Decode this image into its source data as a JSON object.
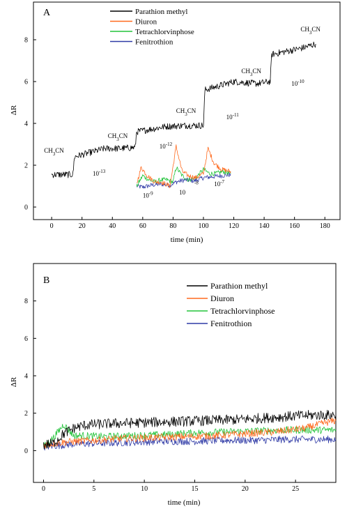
{
  "chart_data": [
    {
      "panel": "A",
      "type": "line",
      "xlabel": "time (min)",
      "ylabel": "ΔR",
      "xlim": [
        -12,
        190
      ],
      "ylim": [
        -0.6,
        9.8
      ],
      "xticks": [
        0,
        20,
        40,
        60,
        80,
        100,
        120,
        140,
        160,
        180
      ],
      "yticks": [
        0,
        2,
        4,
        6,
        8
      ],
      "legend_position": "top-center",
      "series": [
        {
          "name": "Parathion methyl",
          "color": "#000000",
          "x": [
            0,
            14,
            15,
            35,
            45,
            55,
            56,
            75,
            88,
            100,
            101,
            120,
            135,
            144,
            145,
            165,
            174
          ],
          "y": [
            1.55,
            1.55,
            2.4,
            2.8,
            2.8,
            2.85,
            3.6,
            3.85,
            3.9,
            3.9,
            5.6,
            6.0,
            5.9,
            6.0,
            7.3,
            7.6,
            7.8
          ]
        },
        {
          "name": "Diuron",
          "color": "#ff6a1e",
          "x": [
            56,
            59,
            63,
            68,
            72,
            75,
            78,
            82,
            86,
            90,
            95,
            100,
            103,
            107,
            112,
            118
          ],
          "y": [
            1.1,
            1.9,
            1.5,
            1.2,
            1.2,
            1.1,
            1.0,
            2.9,
            1.7,
            1.5,
            1.4,
            1.6,
            2.8,
            2.1,
            1.8,
            1.7
          ]
        },
        {
          "name": "Tetrachlorvinphose",
          "color": "#22c33a",
          "x": [
            56,
            60,
            64,
            68,
            72,
            76,
            80,
            82,
            86,
            90,
            95,
            100,
            104,
            108,
            113,
            118
          ],
          "y": [
            1.0,
            1.5,
            1.3,
            1.2,
            1.3,
            1.3,
            1.2,
            1.9,
            1.5,
            1.3,
            1.4,
            1.8,
            1.6,
            1.6,
            1.7,
            1.6
          ]
        },
        {
          "name": "Fenitrothion",
          "color": "#2f3aa6",
          "x": [
            56,
            60,
            66,
            72,
            78,
            82,
            88,
            94,
            100,
            106,
            112,
            118
          ],
          "y": [
            1.0,
            0.95,
            1.05,
            1.1,
            1.05,
            1.2,
            1.3,
            1.25,
            1.4,
            1.45,
            1.5,
            1.55
          ]
        }
      ],
      "annotations": [
        {
          "text": "CH3CN",
          "x": -5,
          "y": 2.6
        },
        {
          "text": "CH3CN",
          "x": 37,
          "y": 3.3
        },
        {
          "text": "CH3CN",
          "x": 82,
          "y": 4.5
        },
        {
          "text": "CH3CN",
          "x": 125,
          "y": 6.4
        },
        {
          "text": "CH3CN",
          "x": 164,
          "y": 8.4
        },
        {
          "text": "10",
          "sup": "-13",
          "x": 27,
          "y": 1.5
        },
        {
          "text": "10",
          "sup": "-12",
          "x": 71,
          "y": 2.8
        },
        {
          "text": "10",
          "sup": "-11",
          "x": 115,
          "y": 4.2
        },
        {
          "text": "10",
          "sup": "-10",
          "x": 158,
          "y": 5.8
        },
        {
          "text": "10",
          "sup": "-9",
          "x": 60,
          "y": 0.45
        },
        {
          "text": "10",
          "sup": "",
          "x": 84,
          "y": 0.6
        },
        {
          "text": "",
          "sup": "-8",
          "x": 94,
          "y": 0.95
        },
        {
          "text": "10",
          "sup": "-7",
          "x": 107,
          "y": 1.0
        }
      ]
    },
    {
      "panel": "B",
      "type": "line",
      "xlabel": "time (min)",
      "ylabel": "ΔR",
      "xlim": [
        -1,
        29
      ],
      "ylim": [
        -1.7,
        10
      ],
      "xticks": [
        0,
        5,
        10,
        15,
        20,
        25
      ],
      "yticks": [
        0,
        2,
        4,
        6,
        8
      ],
      "legend_position": "top-right",
      "series": [
        {
          "name": "Parathion methyl",
          "color": "#000000",
          "x": [
            0,
            1,
            2,
            3,
            4,
            5,
            7,
            10,
            13,
            16,
            19,
            22,
            25,
            27,
            29
          ],
          "y": [
            0.3,
            0.4,
            0.9,
            1.2,
            1.35,
            1.4,
            1.45,
            1.5,
            1.55,
            1.6,
            1.65,
            1.75,
            1.85,
            1.9,
            1.9
          ]
        },
        {
          "name": "Diuron",
          "color": "#ff6a1e",
          "x": [
            0,
            2,
            5,
            8,
            11,
            14,
            17,
            20,
            23,
            26,
            28,
            29
          ],
          "y": [
            0.3,
            0.45,
            0.55,
            0.65,
            0.7,
            0.75,
            0.8,
            0.9,
            1.0,
            1.2,
            1.5,
            1.6
          ]
        },
        {
          "name": "Tetrachlorvinphose",
          "color": "#22c33a",
          "x": [
            0,
            1,
            2,
            3,
            4,
            6,
            9,
            12,
            15,
            18,
            21,
            24,
            27,
            29
          ],
          "y": [
            0.2,
            0.7,
            1.4,
            0.8,
            0.8,
            0.75,
            0.8,
            0.85,
            0.95,
            1.0,
            1.05,
            1.1,
            1.1,
            1.1
          ]
        },
        {
          "name": "Fenitrothion",
          "color": "#2f3aa6",
          "x": [
            0,
            3,
            6,
            9,
            12,
            15,
            18,
            21,
            24,
            27,
            29
          ],
          "y": [
            0.2,
            0.35,
            0.4,
            0.45,
            0.5,
            0.5,
            0.55,
            0.55,
            0.6,
            0.6,
            0.6
          ]
        }
      ],
      "annotations": []
    }
  ]
}
